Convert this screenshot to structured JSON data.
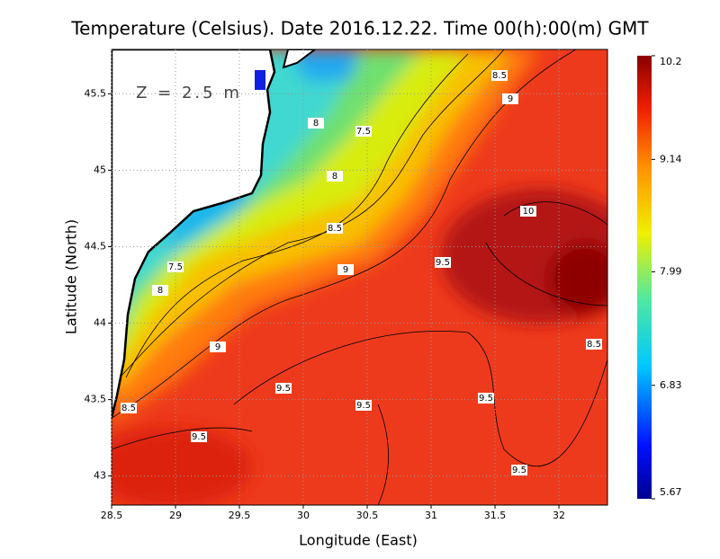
{
  "title": "Temperature (Celsius). Date 2016.12.22. Time 00(h):00(m)  GMT",
  "annotation": "Z = 2.5 m",
  "x_axis": {
    "label": "Longitude (East)",
    "lim": [
      28.5,
      32.38
    ],
    "ticks": [
      28.5,
      29,
      29.5,
      30,
      30.5,
      31,
      31.5,
      32
    ]
  },
  "y_axis": {
    "label": "Latitude (North)",
    "lim": [
      42.81,
      45.79
    ],
    "ticks": [
      43,
      43.5,
      44,
      44.5,
      45,
      45.5
    ]
  },
  "colorbar": {
    "lim": [
      5.67,
      10.2
    ],
    "ticks": [
      5.67,
      6.83,
      7.99,
      9.14,
      10.2
    ]
  },
  "contour_labels": [
    8.5,
    9,
    8,
    7.5,
    8,
    10,
    8.5,
    9.5,
    9,
    7.5,
    8,
    9,
    8.5,
    9.5,
    9.5,
    9.5,
    8.5,
    9.5,
    9.5
  ]
}
